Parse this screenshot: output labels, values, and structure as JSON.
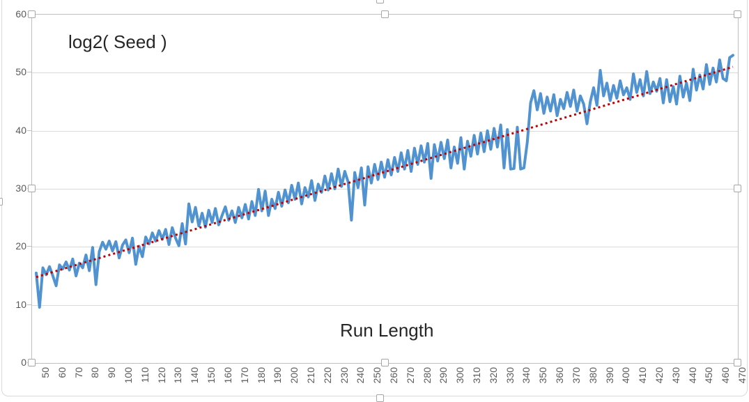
{
  "chart_data": {
    "type": "line",
    "title": "",
    "ylabel_text": "log2( Seed )",
    "xlabel_text": "Run Length",
    "xlim": [
      50,
      470
    ],
    "ylim": [
      0,
      60
    ],
    "grid": true,
    "legend": "none",
    "y_ticks": [
      0,
      10,
      20,
      30,
      40,
      50,
      60
    ],
    "x_ticks": [
      50,
      60,
      70,
      80,
      90,
      100,
      110,
      120,
      130,
      140,
      150,
      160,
      170,
      180,
      190,
      200,
      210,
      220,
      230,
      240,
      250,
      260,
      270,
      280,
      290,
      300,
      310,
      320,
      330,
      340,
      350,
      360,
      370,
      380,
      390,
      400,
      410,
      420,
      430,
      440,
      450,
      460,
      470
    ],
    "series": [
      {
        "name": "log2-seed-series",
        "color": "#5093D0",
        "stroke_width": 4,
        "style": "solid",
        "x_start": 50,
        "x_step": 2,
        "values": [
          15.5,
          9.6,
          16.4,
          15.2,
          16.6,
          15.0,
          13.3,
          16.9,
          16.2,
          17.4,
          16.0,
          17.9,
          15.0,
          17.2,
          16.4,
          18.6,
          15.9,
          19.9,
          13.5,
          19.2,
          20.8,
          19.6,
          21.0,
          19.3,
          20.9,
          18.1,
          20.3,
          21.2,
          19.0,
          21.5,
          17.0,
          20.1,
          18.3,
          21.7,
          20.5,
          22.4,
          21.0,
          22.8,
          21.3,
          23.0,
          20.4,
          23.3,
          21.5,
          20.2,
          24.0,
          20.5,
          27.4,
          24.3,
          26.8,
          23.6,
          25.8,
          23.4,
          26.3,
          24.2,
          26.6,
          23.8,
          25.4,
          26.9,
          24.6,
          26.2,
          24.2,
          26.8,
          25.0,
          27.3,
          24.8,
          27.8,
          25.4,
          29.9,
          26.2,
          29.6,
          25.4,
          28.2,
          26.6,
          29.4,
          27.0,
          29.8,
          27.6,
          30.6,
          28.2,
          31.0,
          27.4,
          30.2,
          28.6,
          31.4,
          28.0,
          30.8,
          29.4,
          32.2,
          29.8,
          32.6,
          30.0,
          33.4,
          30.4,
          33.0,
          31.2,
          24.6,
          32.8,
          30.2,
          33.6,
          27.2,
          33.8,
          31.0,
          34.2,
          31.6,
          34.6,
          32.0,
          35.0,
          32.4,
          35.4,
          33.0,
          36.2,
          33.4,
          36.6,
          33.0,
          37.0,
          34.2,
          37.4,
          34.6,
          37.8,
          31.8,
          37.6,
          34.8,
          38.0,
          35.2,
          38.4,
          33.6,
          37.2,
          34.4,
          38.8,
          33.4,
          38.2,
          35.6,
          39.2,
          36.0,
          39.6,
          36.4,
          40.0,
          36.8,
          40.4,
          37.2,
          41.0,
          33.6,
          40.2,
          33.4,
          33.5,
          40.6,
          33.4,
          33.6,
          38.0,
          44.8,
          46.9,
          43.6,
          46.4,
          43.0,
          45.8,
          43.4,
          46.2,
          42.6,
          45.4,
          43.8,
          46.6,
          44.2,
          47.0,
          43.4,
          46.0,
          44.6,
          41.2,
          45.0,
          47.4,
          44.4,
          50.4,
          46.0,
          48.2,
          45.2,
          47.8,
          45.6,
          48.6,
          46.2,
          47.4,
          45.4,
          49.8,
          46.6,
          48.8,
          46.0,
          50.2,
          46.4,
          48.4,
          46.8,
          49.0,
          44.8,
          48.8,
          45.0,
          47.6,
          44.6,
          49.4,
          45.8,
          48.2,
          45.2,
          50.6,
          47.0,
          49.6,
          47.2,
          51.4,
          48.0,
          50.8,
          48.4,
          52.2,
          49.0,
          48.6,
          52.6,
          53.0
        ]
      },
      {
        "name": "linear-trendline",
        "color": "#C00000",
        "stroke_width": 3,
        "style": "dotted",
        "points": [
          [
            50,
            14.8
          ],
          [
            470,
            51.0
          ]
        ]
      }
    ],
    "colors": {
      "gridline": "#D9D9D9",
      "axis_line": "#BFBFBF",
      "tick_text": "#595959",
      "annotation_text": "#262626",
      "handle_border": "#A6A6A6",
      "chart_border": "#D9D9D9"
    }
  }
}
